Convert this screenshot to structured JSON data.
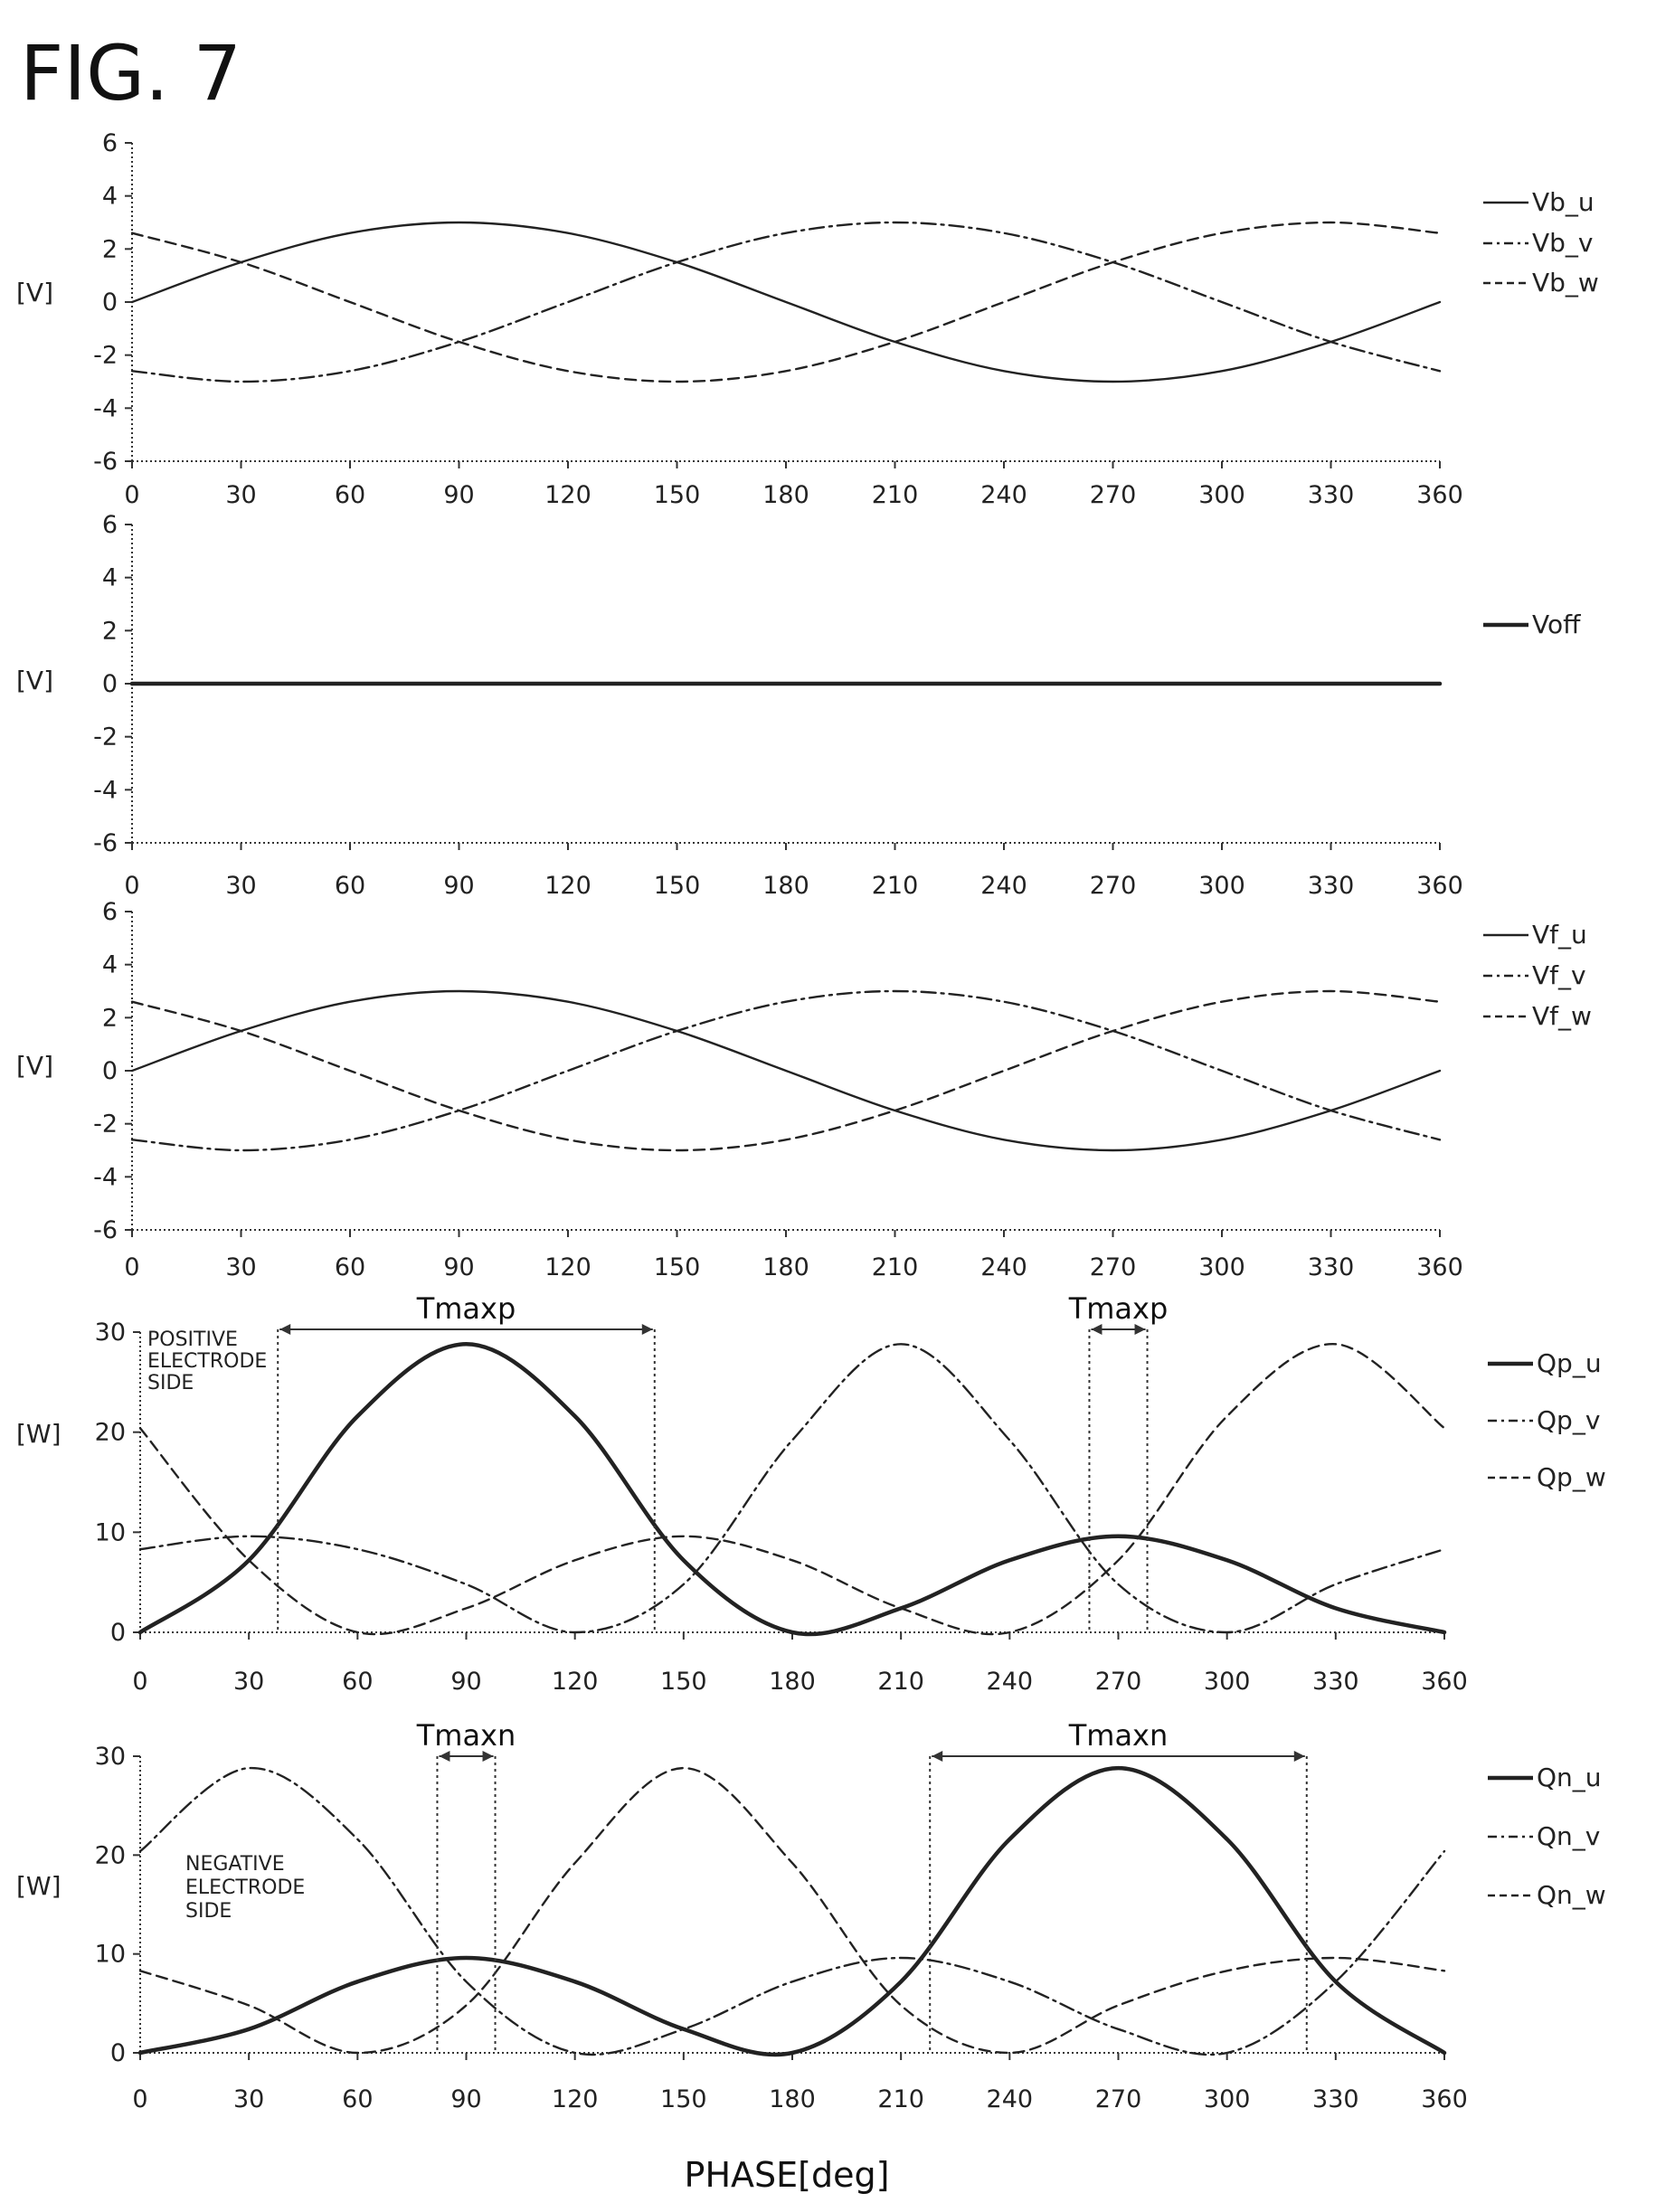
{
  "figure": {
    "title": "FIG. 7",
    "xlabel": "PHASE[deg]"
  },
  "chart_data": [
    {
      "type": "line",
      "ylabel": "[V]",
      "xlim": [
        0,
        360
      ],
      "ylim": [
        -6,
        6
      ],
      "xticks": [
        0,
        30,
        60,
        90,
        120,
        150,
        180,
        210,
        240,
        270,
        300,
        330,
        360
      ],
      "yticks": [
        -6,
        -4,
        -2,
        0,
        2,
        4,
        6
      ],
      "legend_position": "right",
      "series": [
        {
          "name": "Vb_u",
          "style": "solid",
          "x": [
            0,
            30,
            60,
            90,
            120,
            150,
            180,
            210,
            240,
            270,
            300,
            330,
            360
          ],
          "y": [
            0,
            1.5,
            2.6,
            3,
            2.6,
            1.5,
            0,
            -1.5,
            -2.6,
            -3,
            -2.6,
            -1.5,
            0
          ]
        },
        {
          "name": "Vb_v",
          "style": "dashdot",
          "x": [
            0,
            30,
            60,
            90,
            120,
            150,
            180,
            210,
            240,
            270,
            300,
            330,
            360
          ],
          "y": [
            -2.6,
            -3,
            -2.6,
            -1.5,
            0,
            1.5,
            2.6,
            3,
            2.6,
            1.5,
            0,
            -1.5,
            -2.6
          ]
        },
        {
          "name": "Vb_w",
          "style": "dashed",
          "x": [
            0,
            30,
            60,
            90,
            120,
            150,
            180,
            210,
            240,
            270,
            300,
            330,
            360
          ],
          "y": [
            2.6,
            1.5,
            0,
            -1.5,
            -2.6,
            -3,
            -2.6,
            -1.5,
            0,
            1.5,
            2.6,
            3,
            2.6
          ]
        }
      ]
    },
    {
      "type": "line",
      "ylabel": "[V]",
      "xlim": [
        0,
        360
      ],
      "ylim": [
        -6,
        6
      ],
      "xticks": [
        0,
        30,
        60,
        90,
        120,
        150,
        180,
        210,
        240,
        270,
        300,
        330,
        360
      ],
      "yticks": [
        -6,
        -4,
        -2,
        0,
        2,
        4,
        6
      ],
      "legend_position": "right",
      "series": [
        {
          "name": "Voff",
          "style": "thick",
          "x": [
            0,
            360
          ],
          "y": [
            0,
            0
          ]
        }
      ]
    },
    {
      "type": "line",
      "ylabel": "[V]",
      "xlim": [
        0,
        360
      ],
      "ylim": [
        -6,
        6
      ],
      "xticks": [
        0,
        30,
        60,
        90,
        120,
        150,
        180,
        210,
        240,
        270,
        300,
        330,
        360
      ],
      "yticks": [
        -6,
        -4,
        -2,
        0,
        2,
        4,
        6
      ],
      "legend_position": "right",
      "series": [
        {
          "name": "Vf_u",
          "style": "solid",
          "x": [
            0,
            30,
            60,
            90,
            120,
            150,
            180,
            210,
            240,
            270,
            300,
            330,
            360
          ],
          "y": [
            0,
            1.5,
            2.6,
            3,
            2.6,
            1.5,
            0,
            -1.5,
            -2.6,
            -3,
            -2.6,
            -1.5,
            0
          ]
        },
        {
          "name": "Vf_v",
          "style": "dashdot",
          "x": [
            0,
            30,
            60,
            90,
            120,
            150,
            180,
            210,
            240,
            270,
            300,
            330,
            360
          ],
          "y": [
            -2.6,
            -3,
            -2.6,
            -1.5,
            0,
            1.5,
            2.6,
            3,
            2.6,
            1.5,
            0,
            -1.5,
            -2.6
          ]
        },
        {
          "name": "Vf_w",
          "style": "dashed",
          "x": [
            0,
            30,
            60,
            90,
            120,
            150,
            180,
            210,
            240,
            270,
            300,
            330,
            360
          ],
          "y": [
            2.6,
            1.5,
            0,
            -1.5,
            -2.6,
            -3,
            -2.6,
            -1.5,
            0,
            1.5,
            2.6,
            3,
            2.6
          ]
        }
      ]
    },
    {
      "type": "line",
      "ylabel": "[W]",
      "xlim": [
        0,
        360
      ],
      "ylim": [
        0,
        30
      ],
      "xticks": [
        0,
        30,
        60,
        90,
        120,
        150,
        180,
        210,
        240,
        270,
        300,
        330,
        360
      ],
      "yticks": [
        0,
        10,
        20,
        30
      ],
      "legend_position": "right",
      "note": [
        "POSITIVE",
        "ELECTRODE",
        "SIDE"
      ],
      "annotations": [
        {
          "label": "Tmaxp",
          "x_start": 38,
          "x_end": 142
        },
        {
          "label": "Tmaxp",
          "x_start": 262,
          "x_end": 278
        }
      ],
      "series": [
        {
          "name": "Qp_u",
          "style": "thick",
          "x": [
            0,
            30,
            60,
            90,
            120,
            150,
            180,
            210,
            240,
            270,
            300,
            330,
            360
          ],
          "y": [
            0,
            7.2,
            21.6,
            28.8,
            21.6,
            7.2,
            0,
            2.4,
            7.2,
            9.6,
            7.2,
            2.4,
            0
          ]
        },
        {
          "name": "Qp_v",
          "style": "dashdot",
          "x": [
            0,
            30,
            60,
            90,
            120,
            150,
            180,
            210,
            240,
            270,
            300,
            330,
            360
          ],
          "y": [
            8.3,
            9.6,
            8.3,
            4.8,
            0,
            4.8,
            19.2,
            28.8,
            19.2,
            4.8,
            0,
            4.8,
            8.3
          ]
        },
        {
          "name": "Qp_w",
          "style": "dashed",
          "x": [
            0,
            30,
            60,
            90,
            120,
            150,
            180,
            210,
            240,
            270,
            300,
            330,
            360
          ],
          "y": [
            20.4,
            7.2,
            0,
            2.4,
            7.2,
            9.6,
            7.2,
            2.4,
            0,
            7.2,
            21.6,
            28.8,
            20.4
          ]
        }
      ]
    },
    {
      "type": "line",
      "ylabel": "[W]",
      "xlim": [
        0,
        360
      ],
      "ylim": [
        0,
        30
      ],
      "xticks": [
        0,
        30,
        60,
        90,
        120,
        150,
        180,
        210,
        240,
        270,
        300,
        330,
        360
      ],
      "yticks": [
        0,
        10,
        20,
        30
      ],
      "legend_position": "right",
      "note": [
        "NEGATIVE",
        "ELECTRODE",
        "SIDE"
      ],
      "annotations": [
        {
          "label": "Tmaxn",
          "x_start": 82,
          "x_end": 98
        },
        {
          "label": "Tmaxn",
          "x_start": 218,
          "x_end": 322
        }
      ],
      "series": [
        {
          "name": "Qn_u",
          "style": "thick",
          "x": [
            0,
            30,
            60,
            90,
            120,
            150,
            180,
            210,
            240,
            270,
            300,
            330,
            360
          ],
          "y": [
            0,
            2.4,
            7.2,
            9.6,
            7.2,
            2.4,
            0,
            7.2,
            21.6,
            28.8,
            21.6,
            7.2,
            0
          ]
        },
        {
          "name": "Qn_v",
          "style": "dashdot",
          "x": [
            0,
            30,
            60,
            90,
            120,
            150,
            180,
            210,
            240,
            270,
            300,
            330,
            360
          ],
          "y": [
            20.4,
            28.8,
            21.6,
            7.2,
            0,
            2.4,
            7.2,
            9.6,
            7.2,
            2.4,
            0,
            7.2,
            20.4
          ]
        },
        {
          "name": "Qn_w",
          "style": "dashed",
          "x": [
            0,
            30,
            60,
            90,
            120,
            150,
            180,
            210,
            240,
            270,
            300,
            330,
            360
          ],
          "y": [
            8.3,
            4.8,
            0,
            4.8,
            19.2,
            28.8,
            19.2,
            4.8,
            0,
            4.8,
            8.3,
            9.6,
            8.3
          ]
        }
      ]
    }
  ]
}
